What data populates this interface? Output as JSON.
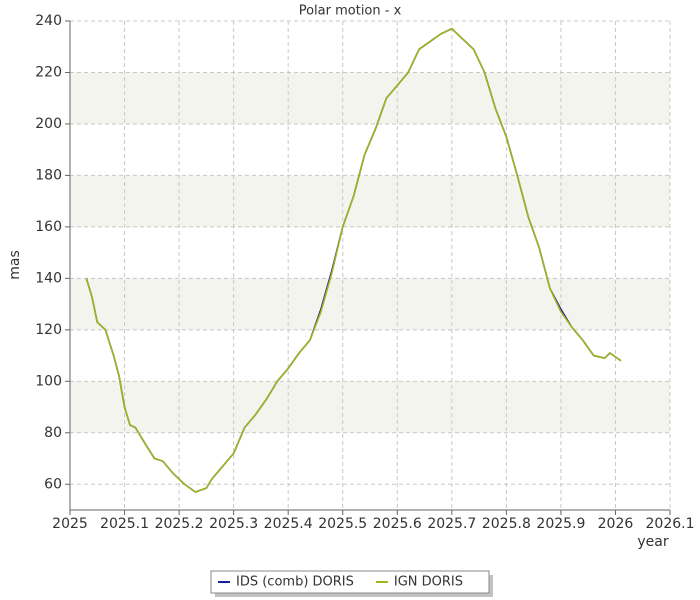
{
  "chart_data": {
    "type": "line",
    "title": "Polar motion - x",
    "x_label": "year",
    "y_label": "mas",
    "x": [
      2025.03,
      2025.04,
      2025.05,
      2025.06,
      2025.065,
      2025.08,
      2025.09,
      2025.1,
      2025.11,
      2025.12,
      2025.14,
      2025.155,
      2025.17,
      2025.19,
      2025.21,
      2025.23,
      2025.25,
      2025.26,
      2025.28,
      2025.3,
      2025.32,
      2025.34,
      2025.36,
      2025.38,
      2025.4,
      2025.42,
      2025.44,
      2025.46,
      2025.48,
      2025.5,
      2025.52,
      2025.54,
      2025.56,
      2025.58,
      2025.6,
      2025.62,
      2025.64,
      2025.66,
      2025.68,
      2025.7,
      2025.72,
      2025.74,
      2025.76,
      2025.78,
      2025.8,
      2025.82,
      2025.84,
      2025.86,
      2025.88,
      2025.9,
      2025.92,
      2025.94,
      2025.96,
      2025.98,
      2025.99,
      2026.01
    ],
    "series": [
      {
        "name": "IDS (comb) DORIS",
        "color": "#1f1f99",
        "values": [
          140,
          133,
          123,
          121,
          120,
          110,
          102,
          90,
          83,
          82,
          75,
          70,
          69,
          64,
          60,
          57,
          58.5,
          62,
          67,
          72,
          82,
          87,
          93,
          100,
          105,
          111,
          116,
          128,
          143,
          160,
          172,
          188,
          198,
          210,
          215,
          220,
          229,
          232,
          235,
          237,
          233,
          229,
          220,
          206,
          195,
          180,
          164,
          152,
          136,
          128,
          121,
          116,
          110,
          109,
          111,
          108
        ]
      },
      {
        "name": "IGN DORIS",
        "color": "#a4b41c",
        "values": [
          140,
          133,
          123,
          121,
          120,
          110,
          102,
          90,
          83,
          82,
          75,
          70,
          69,
          64,
          60,
          57,
          58.5,
          62,
          67,
          72,
          82,
          87,
          93,
          100,
          105,
          111,
          116,
          127,
          142,
          160,
          172,
          188,
          198,
          210,
          215,
          220,
          229,
          232,
          235,
          237,
          233,
          229,
          220,
          206,
          195,
          180,
          164,
          152,
          136,
          127,
          121,
          116,
          110,
          109,
          111,
          108
        ]
      }
    ],
    "xlim": [
      2025,
      2026.1
    ],
    "xticks": [
      2025,
      2025.1,
      2025.2,
      2025.3,
      2025.4,
      2025.5,
      2025.6,
      2025.7,
      2025.8,
      2025.9,
      2026,
      2026.1
    ],
    "ylim": [
      50,
      240
    ],
    "yticks": [
      60,
      80,
      100,
      120,
      140,
      160,
      180,
      200,
      220,
      240
    ],
    "grid": true,
    "legend": "bottom"
  }
}
